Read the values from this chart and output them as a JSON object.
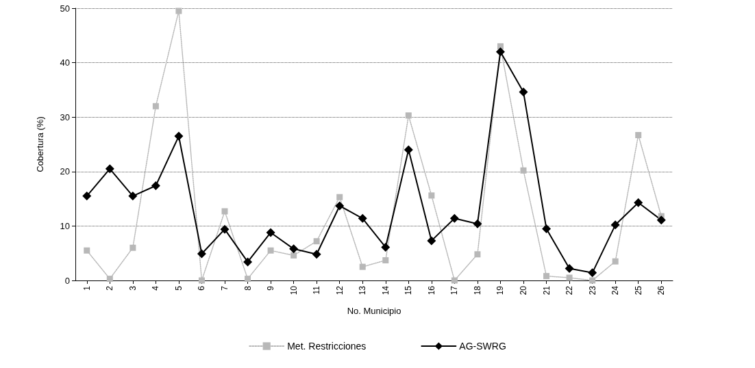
{
  "chart_data": {
    "type": "line",
    "xlabel": "No. Municipio",
    "ylabel": "Cobertura (%)",
    "categories": [
      "1",
      "2",
      "3",
      "4",
      "5",
      "6",
      "7",
      "8",
      "9",
      "10",
      "11",
      "12",
      "13",
      "14",
      "15",
      "16",
      "17",
      "18",
      "19",
      "20",
      "21",
      "22",
      "23",
      "24",
      "25",
      "26"
    ],
    "series": [
      {
        "name": "Met. Restricciones",
        "color": "#b8b8b8",
        "marker": "square",
        "line_style": "dotted",
        "values": [
          5.5,
          0.3,
          6,
          32,
          49.5,
          0,
          12.7,
          0.3,
          5.5,
          4.6,
          7.2,
          15.3,
          2.5,
          3.7,
          30.3,
          15.6,
          0,
          4.8,
          43,
          20.2,
          0.8,
          0.5,
          0,
          3.5,
          26.7,
          11.8
        ]
      },
      {
        "name": "AG-SWRG",
        "color": "#000000",
        "marker": "diamond",
        "line_style": "solid",
        "values": [
          15.5,
          20.5,
          15.5,
          17.4,
          26.5,
          4.9,
          9.4,
          3.4,
          8.8,
          5.8,
          4.8,
          13.7,
          11.4,
          6.1,
          24,
          7.3,
          11.4,
          10.4,
          42,
          34.6,
          9.5,
          2.2,
          1.4,
          10.2,
          14.3,
          11.1
        ]
      }
    ],
    "ylim": [
      0,
      50
    ],
    "yticks": [
      0,
      10,
      20,
      30,
      40,
      50
    ],
    "grid": "y",
    "legend": "bottom"
  }
}
